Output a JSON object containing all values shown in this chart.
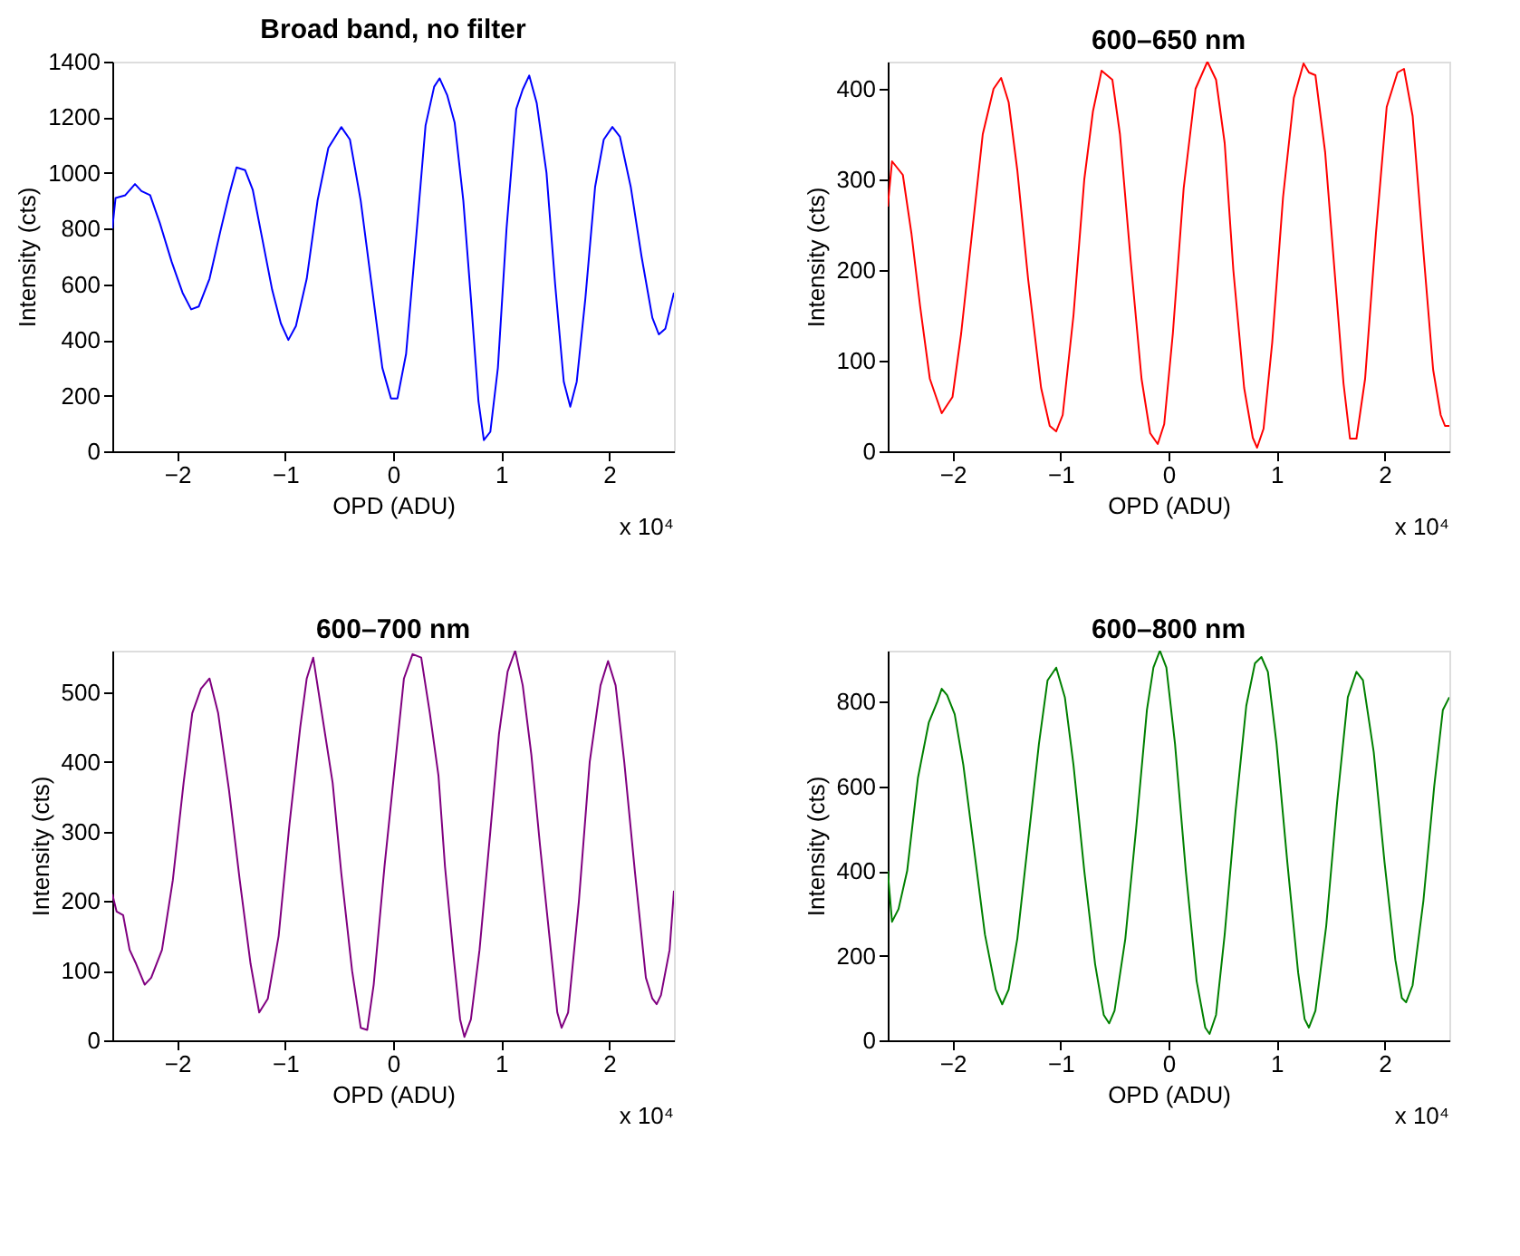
{
  "chart_data": [
    {
      "type": "line",
      "title": "Broad band, no filter",
      "xlabel": "OPD (ADU)",
      "ylabel": "Intensity (cts)",
      "annotations": [
        "x 10⁴"
      ],
      "xlim": [
        -2.6,
        2.6
      ],
      "ylim": [
        0,
        1400
      ],
      "xticks": [
        -2,
        -1,
        0,
        1,
        2
      ],
      "yticks": [
        0,
        200,
        400,
        600,
        800,
        1000,
        1200,
        1400
      ],
      "grid": false,
      "x": [
        -2.6,
        -2.57,
        -2.48,
        -2.39,
        -2.33,
        -2.25,
        -2.16,
        -2.05,
        -1.95,
        -1.87,
        -1.8,
        -1.7,
        -1.6,
        -1.52,
        -1.45,
        -1.37,
        -1.3,
        -1.22,
        -1.12,
        -1.04,
        -0.97,
        -0.9,
        -0.8,
        -0.7,
        -0.6,
        -0.48,
        -0.4,
        -0.3,
        -0.2,
        -0.1,
        -0.02,
        0.04,
        0.12,
        0.22,
        0.3,
        0.38,
        0.43,
        0.5,
        0.57,
        0.65,
        0.72,
        0.79,
        0.84,
        0.9,
        0.97,
        1.05,
        1.14,
        1.2,
        1.26,
        1.33,
        1.42,
        1.5,
        1.58,
        1.64,
        1.7,
        1.78,
        1.87,
        1.95,
        2.03,
        2.1,
        2.2,
        2.3,
        2.4,
        2.46,
        2.52,
        2.6
      ],
      "series": [
        {
          "color": "#0000ff",
          "values": [
            800,
            910,
            920,
            960,
            935,
            920,
            820,
            680,
            570,
            510,
            520,
            620,
            790,
            920,
            1020,
            1010,
            940,
            780,
            580,
            460,
            400,
            450,
            620,
            900,
            1090,
            1165,
            1120,
            900,
            600,
            300,
            190,
            190,
            350,
            800,
            1170,
            1310,
            1340,
            1280,
            1180,
            900,
            550,
            180,
            40,
            70,
            300,
            800,
            1230,
            1300,
            1350,
            1250,
            1000,
            600,
            250,
            160,
            250,
            550,
            950,
            1120,
            1165,
            1130,
            950,
            700,
            480,
            420,
            440,
            570
          ]
        }
      ]
    },
    {
      "type": "line",
      "title": "600–650 nm",
      "xlabel": "OPD (ADU)",
      "ylabel": "Intensity (cts)",
      "annotations": [
        "x 10⁴"
      ],
      "xlim": [
        -2.6,
        2.6
      ],
      "ylim": [
        0,
        430
      ],
      "xticks": [
        -2,
        -1,
        0,
        1,
        2
      ],
      "yticks": [
        0,
        100,
        200,
        300,
        400
      ],
      "grid": false,
      "x": [
        -2.6,
        -2.56,
        -2.46,
        -2.38,
        -2.3,
        -2.21,
        -2.1,
        -2.0,
        -1.92,
        -1.82,
        -1.72,
        -1.62,
        -1.55,
        -1.48,
        -1.4,
        -1.3,
        -1.18,
        -1.1,
        -1.04,
        -0.98,
        -0.88,
        -0.78,
        -0.7,
        -0.62,
        -0.52,
        -0.45,
        -0.35,
        -0.25,
        -0.17,
        -0.1,
        -0.04,
        0.04,
        0.14,
        0.25,
        0.36,
        0.44,
        0.52,
        0.6,
        0.7,
        0.78,
        0.82,
        0.88,
        0.96,
        1.06,
        1.16,
        1.25,
        1.3,
        1.36,
        1.45,
        1.55,
        1.62,
        1.68,
        1.74,
        1.82,
        1.92,
        2.02,
        2.12,
        2.18,
        2.26,
        2.36,
        2.45,
        2.52,
        2.56,
        2.6
      ],
      "series": [
        {
          "color": "#ff0000",
          "values": [
            270,
            320,
            305,
            240,
            160,
            80,
            42,
            60,
            130,
            240,
            350,
            400,
            412,
            385,
            310,
            190,
            70,
            28,
            22,
            40,
            150,
            300,
            375,
            420,
            410,
            350,
            210,
            80,
            20,
            8,
            30,
            130,
            290,
            400,
            430,
            410,
            340,
            200,
            70,
            15,
            4,
            25,
            120,
            280,
            390,
            428,
            418,
            415,
            330,
            180,
            75,
            14,
            14,
            80,
            240,
            380,
            418,
            422,
            370,
            220,
            90,
            40,
            28,
            28
          ]
        }
      ]
    },
    {
      "type": "line",
      "title": "600–700 nm",
      "xlabel": "OPD (ADU)",
      "ylabel": "Intensity (cts)",
      "annotations": [
        "x 10⁴"
      ],
      "xlim": [
        -2.6,
        2.6
      ],
      "ylim": [
        0,
        560
      ],
      "xticks": [
        -2,
        -1,
        0,
        1,
        2
      ],
      "yticks": [
        0,
        100,
        200,
        300,
        400,
        500
      ],
      "grid": false,
      "x": [
        -2.6,
        -2.56,
        -2.5,
        -2.44,
        -2.38,
        -2.3,
        -2.24,
        -2.14,
        -2.04,
        -1.94,
        -1.86,
        -1.78,
        -1.7,
        -1.62,
        -1.52,
        -1.42,
        -1.32,
        -1.24,
        -1.16,
        -1.06,
        -0.96,
        -0.86,
        -0.8,
        -0.74,
        -0.68,
        -0.56,
        -0.48,
        -0.38,
        -0.3,
        -0.24,
        -0.18,
        -0.08,
        0.02,
        0.1,
        0.18,
        0.26,
        0.34,
        0.42,
        0.48,
        0.56,
        0.62,
        0.66,
        0.72,
        0.8,
        0.9,
        0.98,
        1.06,
        1.13,
        1.2,
        1.28,
        1.36,
        1.46,
        1.52,
        1.56,
        1.62,
        1.72,
        1.82,
        1.92,
        1.99,
        2.06,
        2.14,
        2.24,
        2.34,
        2.4,
        2.44,
        2.48,
        2.56,
        2.6
      ],
      "series": [
        {
          "color": "#800080",
          "values": [
            210,
            185,
            180,
            130,
            110,
            80,
            90,
            130,
            230,
            370,
            470,
            505,
            520,
            470,
            360,
            230,
            110,
            40,
            60,
            150,
            310,
            450,
            520,
            550,
            490,
            370,
            240,
            100,
            18,
            15,
            80,
            250,
            400,
            520,
            555,
            550,
            470,
            380,
            250,
            120,
            30,
            5,
            30,
            130,
            300,
            440,
            530,
            560,
            510,
            410,
            280,
            130,
            40,
            18,
            40,
            200,
            400,
            510,
            545,
            510,
            400,
            240,
            90,
            60,
            52,
            65,
            130,
            215
          ]
        }
      ]
    },
    {
      "type": "line",
      "title": "600–800 nm",
      "xlabel": "OPD (ADU)",
      "ylabel": "Intensity (cts)",
      "annotations": [
        "x 10⁴"
      ],
      "xlim": [
        -2.6,
        2.6
      ],
      "ylim": [
        0,
        920
      ],
      "xticks": [
        -2,
        -1,
        0,
        1,
        2
      ],
      "yticks": [
        0,
        200,
        400,
        600,
        800
      ],
      "grid": false,
      "x": [
        -2.6,
        -2.56,
        -2.5,
        -2.42,
        -2.32,
        -2.22,
        -2.14,
        -2.1,
        -2.05,
        -1.98,
        -1.9,
        -1.8,
        -1.7,
        -1.6,
        -1.54,
        -1.48,
        -1.4,
        -1.3,
        -1.2,
        -1.12,
        -1.04,
        -0.96,
        -0.88,
        -0.78,
        -0.68,
        -0.6,
        -0.55,
        -0.5,
        -0.4,
        -0.3,
        -0.2,
        -0.14,
        -0.08,
        -0.02,
        0.06,
        0.16,
        0.26,
        0.34,
        0.38,
        0.44,
        0.52,
        0.62,
        0.72,
        0.8,
        0.86,
        0.92,
        1.0,
        1.1,
        1.2,
        1.26,
        1.3,
        1.36,
        1.46,
        1.56,
        1.66,
        1.74,
        1.8,
        1.9,
        2.0,
        2.1,
        2.16,
        2.2,
        2.26,
        2.36,
        2.46,
        2.54,
        2.6
      ],
      "series": [
        {
          "color": "#008000",
          "values": [
            400,
            280,
            310,
            400,
            620,
            750,
            800,
            830,
            815,
            770,
            650,
            450,
            250,
            120,
            85,
            120,
            240,
            470,
            700,
            850,
            880,
            810,
            650,
            400,
            180,
            60,
            40,
            70,
            240,
            500,
            780,
            880,
            920,
            880,
            700,
            400,
            140,
            30,
            15,
            60,
            250,
            540,
            790,
            890,
            905,
            870,
            700,
            420,
            160,
            50,
            30,
            70,
            270,
            560,
            810,
            870,
            850,
            680,
            420,
            190,
            100,
            90,
            130,
            330,
            600,
            780,
            810
          ]
        }
      ]
    }
  ]
}
